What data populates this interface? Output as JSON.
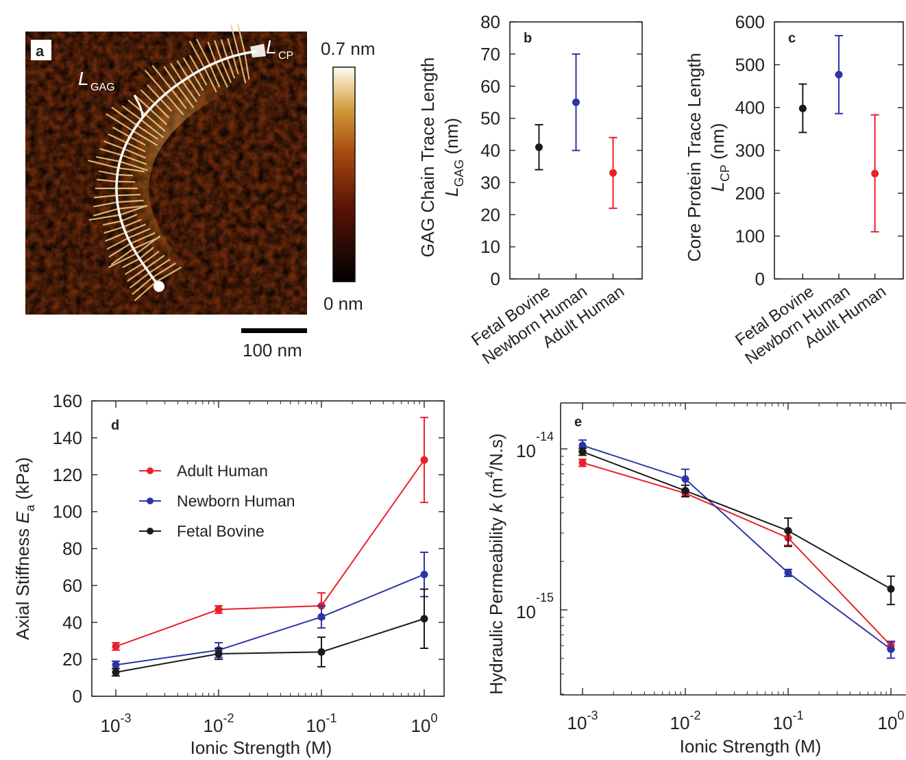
{
  "panel_a": {
    "label": "a",
    "label_lcp": "L",
    "label_lcp_sub": "CP",
    "label_lgag": "L",
    "label_lgag_sub": "GAG",
    "colorbar_max": "0.7 nm",
    "colorbar_min": "0 nm",
    "scale_bar": "100 nm"
  },
  "colors": {
    "fetal": "#1a1a1a",
    "newborn": "#2b35a6",
    "adult": "#e8202a"
  },
  "chart_data": [
    {
      "panel": "b",
      "type": "scatter",
      "ylabel": "GAG Chain Trace Length",
      "ylabel_line2": "L",
      "ylabel_sub": "GAG",
      "ylabel_unit": "(nm)",
      "categories": [
        "Fetal Bovine",
        "Newborn Human",
        "Adult Human"
      ],
      "values": [
        41,
        55,
        33
      ],
      "err_low": [
        34,
        40,
        22
      ],
      "err_high": [
        48,
        70,
        44
      ],
      "ylim": [
        0,
        80
      ],
      "yticks": [
        "0",
        "10",
        "20",
        "30",
        "40",
        "50",
        "60",
        "70",
        "80"
      ]
    },
    {
      "panel": "c",
      "type": "scatter",
      "ylabel": "Core Protein Trace Length",
      "ylabel_line2": "L",
      "ylabel_sub": "CP",
      "ylabel_unit": "(nm)",
      "categories": [
        "Fetal Bovine",
        "Newborn Human",
        "Adult Human"
      ],
      "values": [
        398,
        477,
        246
      ],
      "err_low": [
        342,
        386,
        110
      ],
      "err_high": [
        455,
        568,
        383
      ],
      "ylim": [
        0,
        600
      ],
      "yticks": [
        "0",
        "100",
        "200",
        "300",
        "400",
        "500",
        "600"
      ]
    },
    {
      "panel": "d",
      "type": "line",
      "xlabel": "Ionic Strength (M)",
      "ylabel": "Axial Stiffness",
      "ylabel_sym": "E",
      "ylabel_sub": "a",
      "ylabel_unit": "(kPa)",
      "x": [
        0.001,
        0.01,
        0.1,
        1
      ],
      "xscale": "log",
      "ylim": [
        0,
        160
      ],
      "yticks": [
        "0",
        "20",
        "40",
        "60",
        "80",
        "100",
        "120",
        "140",
        "160"
      ],
      "legend_position": "upper-left",
      "series": [
        {
          "name": "Adult Human",
          "values": [
            27,
            47,
            49,
            128
          ],
          "err": [
            2,
            2,
            7,
            23
          ]
        },
        {
          "name": "Newborn Human",
          "values": [
            17,
            25,
            43,
            66
          ],
          "err": [
            2,
            4,
            6,
            12
          ]
        },
        {
          "name": "Fetal Bovine",
          "values": [
            13,
            23,
            24,
            42
          ],
          "err": [
            2,
            3,
            8,
            16
          ]
        }
      ]
    },
    {
      "panel": "e",
      "type": "line",
      "xlabel": "Ionic Strength (M)",
      "ylabel": "Hydraulic Permeability",
      "ylabel_sym": "k",
      "ylabel_unit": "(m",
      "ylabel_sup": "4",
      "ylabel_unit2": "/N.s)",
      "x": [
        0.001,
        0.01,
        0.1,
        1
      ],
      "xscale": "log",
      "yscale": "log",
      "series": [
        {
          "name": "Adult Human",
          "values": [
            8.2e-15,
            5.3e-15,
            2.8e-15,
            6e-16
          ],
          "err_frac": [
            0.05,
            0.05,
            0.1,
            0.05
          ]
        },
        {
          "name": "Newborn Human",
          "values": [
            1.05e-14,
            6.5e-15,
            1.7e-15,
            5.7e-16
          ],
          "err_frac": [
            0.08,
            0.15,
            0.05,
            0.12
          ]
        },
        {
          "name": "Fetal Bovine",
          "values": [
            9.6e-15,
            5.5e-15,
            3.1e-15,
            1.35e-15
          ],
          "err_frac": [
            0.05,
            0.08,
            0.2,
            0.2
          ]
        }
      ]
    }
  ]
}
